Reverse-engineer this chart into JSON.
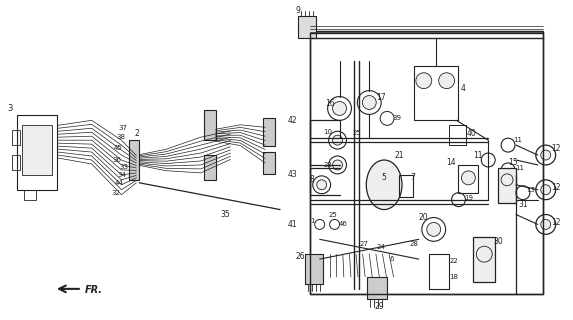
{
  "bg_color": "#ffffff",
  "fig_width": 5.73,
  "fig_height": 3.2,
  "dpi": 100,
  "lc": "#222222",
  "lw": 0.7,
  "fs": 5.0
}
